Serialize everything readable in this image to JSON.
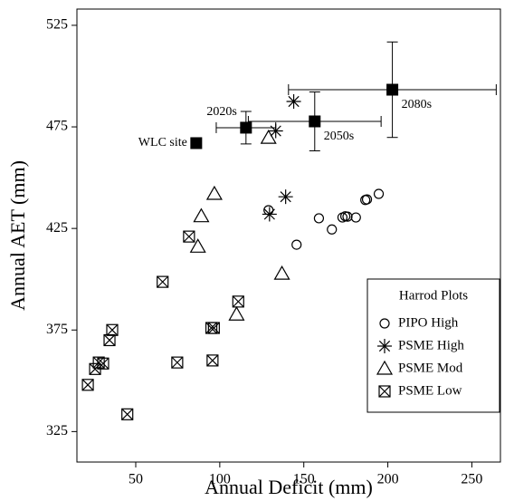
{
  "chart_data": {
    "type": "scatter",
    "x_label": "Annual Deficit (mm)",
    "y_label": "Annual AET (mm)",
    "xlim": [
      15,
      267
    ],
    "ylim": [
      310,
      533
    ],
    "xticks": [
      50,
      100,
      150,
      200,
      250
    ],
    "yticks": [
      325,
      375,
      425,
      475,
      525
    ],
    "grid": false,
    "legend": "lower right",
    "legend_title": "Harrod Plots",
    "series": [
      {
        "name": "PIPO High",
        "marker": "circle",
        "color": "#000000",
        "x": [
          129,
          159,
          145.7,
          166.7,
          173,
          174.7,
          176,
          181,
          186.6,
          187.6,
          194.6
        ],
        "values": [
          434,
          430,
          417,
          424.5,
          430.4,
          431,
          430.8,
          430.4,
          439,
          439.3,
          442
        ]
      },
      {
        "name": "PSME High",
        "marker": "star",
        "color": "#000000",
        "x": [
          144,
          133.3,
          129.6,
          139.2
        ],
        "values": [
          487.5,
          473,
          432,
          440.6
        ]
      },
      {
        "name": "PSME Mod",
        "marker": "triangle",
        "color": "#000000",
        "x": [
          129,
          96.8,
          89,
          87,
          137,
          110
        ],
        "values": [
          469.6,
          442,
          431,
          416,
          402.7,
          382.6
        ]
      },
      {
        "name": "PSME Low",
        "marker": "boxx",
        "color": "#000000",
        "x": [
          81.7,
          66,
          111,
          95,
          96.5,
          36,
          34.4,
          28,
          30.6,
          25.8,
          21.5,
          45,
          74.7,
          95.7
        ],
        "values": [
          421,
          398.7,
          389,
          376,
          376,
          375,
          370,
          359,
          358.5,
          355.8,
          348,
          333.5,
          359,
          360
        ]
      }
    ],
    "scenarios": {
      "color": "#000000",
      "labels": [
        "WLC site",
        "2020s",
        "2050s",
        "2080s"
      ],
      "x": [
        86,
        115.6,
        156.5,
        202.7
      ],
      "values": [
        467,
        474.6,
        477.7,
        493.3
      ],
      "xerr": [
        null,
        17.7,
        39.5,
        61.8
      ],
      "yerr": [
        null,
        8,
        14.5,
        23.5
      ]
    }
  }
}
